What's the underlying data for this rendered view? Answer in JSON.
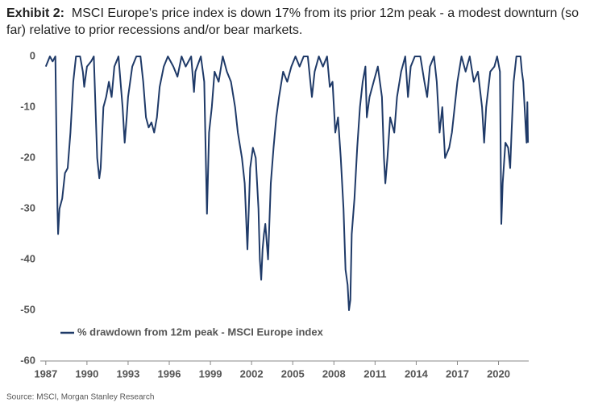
{
  "chart_data": {
    "type": "line",
    "title_prefix": "Exhibit 2:",
    "title": "MSCI Europe's price index is down 17% from its prior 12m peak - a modest downturn (so far) relative to prior recessions and/or bear markets.",
    "source": "Source: MSCI, Morgan Stanley Research",
    "legend": "lower left",
    "xlim": [
      1986.6,
      2022.2
    ],
    "xticks": [
      1987,
      1990,
      1993,
      1996,
      1999,
      2002,
      2005,
      2008,
      2011,
      2014,
      2017,
      2020
    ],
    "ylim": [
      -60,
      0
    ],
    "yticks": [
      0,
      -10,
      -20,
      -30,
      -40,
      -50,
      -60
    ],
    "x": [
      1987.0,
      1987.3,
      1987.5,
      1987.7,
      1987.8,
      1987.85,
      1987.9,
      1988.0,
      1988.2,
      1988.4,
      1988.6,
      1988.8,
      1989.0,
      1989.2,
      1989.5,
      1989.7,
      1989.8,
      1990.0,
      1990.3,
      1990.5,
      1990.65,
      1990.75,
      1990.9,
      1991.0,
      1991.2,
      1991.4,
      1991.6,
      1991.8,
      1992.0,
      1992.3,
      1992.6,
      1992.75,
      1992.9,
      1993.0,
      1993.3,
      1993.6,
      1993.9,
      1994.1,
      1994.3,
      1994.5,
      1994.7,
      1994.9,
      1995.1,
      1995.3,
      1995.6,
      1995.9,
      1996.3,
      1996.6,
      1996.9,
      1997.2,
      1997.6,
      1997.8,
      1997.9,
      1998.3,
      1998.55,
      1998.7,
      1998.75,
      1998.9,
      1999.1,
      1999.3,
      1999.6,
      1999.9,
      2000.2,
      2000.5,
      2000.8,
      2001.0,
      2001.3,
      2001.5,
      2001.7,
      2001.8,
      2001.9,
      2002.1,
      2002.3,
      2002.5,
      2002.6,
      2002.7,
      2002.8,
      2002.9,
      2003.0,
      2003.2,
      2003.4,
      2003.6,
      2003.8,
      2004.0,
      2004.3,
      2004.6,
      2004.9,
      2005.2,
      2005.5,
      2005.8,
      2006.1,
      2006.4,
      2006.6,
      2006.9,
      2007.2,
      2007.5,
      2007.7,
      2007.9,
      2008.1,
      2008.3,
      2008.5,
      2008.7,
      2008.85,
      2009.0,
      2009.1,
      2009.2,
      2009.3,
      2009.5,
      2009.7,
      2009.9,
      2010.1,
      2010.3,
      2010.4,
      2010.6,
      2010.9,
      2011.2,
      2011.5,
      2011.65,
      2011.75,
      2011.9,
      2012.1,
      2012.4,
      2012.6,
      2012.9,
      2013.2,
      2013.4,
      2013.6,
      2013.9,
      2014.3,
      2014.6,
      2014.8,
      2015.0,
      2015.3,
      2015.5,
      2015.7,
      2015.9,
      2016.1,
      2016.4,
      2016.6,
      2016.8,
      2017.0,
      2017.3,
      2017.6,
      2017.9,
      2018.2,
      2018.5,
      2018.8,
      2018.95,
      2019.1,
      2019.4,
      2019.7,
      2019.9,
      2020.1,
      2020.2,
      2020.3,
      2020.5,
      2020.7,
      2020.85,
      2020.95,
      2021.1,
      2021.3,
      2021.6,
      2021.7,
      2021.8,
      2021.9,
      2022.0,
      2022.05,
      2022.1,
      2022.15
    ],
    "series": [
      {
        "name": "% drawdown from 12m peak - MSCI Europe index",
        "color": "#1f3a68",
        "values": [
          -2,
          0,
          -1,
          0,
          -20,
          -30,
          -35,
          -30,
          -28,
          -23,
          -22,
          -15,
          -5,
          0,
          0,
          -3,
          -6,
          -2,
          -1,
          0,
          -12,
          -20,
          -24,
          -22,
          -10,
          -8,
          -5,
          -8,
          -2,
          0,
          -10,
          -17,
          -12,
          -8,
          -2,
          0,
          0,
          -5,
          -12,
          -14,
          -13,
          -15,
          -12,
          -6,
          -2,
          0,
          -2,
          -4,
          0,
          -2,
          0,
          -7,
          -3,
          0,
          -5,
          -25,
          -31,
          -15,
          -10,
          -3,
          -5,
          0,
          -3,
          -5,
          -10,
          -15,
          -20,
          -25,
          -38,
          -30,
          -22,
          -18,
          -20,
          -30,
          -40,
          -44,
          -38,
          -35,
          -33,
          -40,
          -25,
          -18,
          -12,
          -8,
          -3,
          -5,
          -2,
          0,
          -2,
          0,
          0,
          -8,
          -3,
          0,
          -2,
          0,
          -6,
          -5,
          -15,
          -12,
          -20,
          -30,
          -42,
          -45,
          -50,
          -48,
          -35,
          -28,
          -18,
          -10,
          -5,
          -2,
          -12,
          -8,
          -5,
          -2,
          -8,
          -20,
          -25,
          -20,
          -12,
          -15,
          -8,
          -3,
          0,
          -8,
          -2,
          0,
          0,
          -5,
          -8,
          -2,
          0,
          -5,
          -15,
          -10,
          -20,
          -18,
          -15,
          -10,
          -5,
          0,
          -3,
          0,
          -5,
          -3,
          -10,
          -17,
          -10,
          -3,
          -2,
          0,
          -3,
          -33,
          -25,
          -17,
          -18,
          -22,
          -15,
          -5,
          0,
          0,
          -3,
          -5,
          -10,
          -15,
          -17,
          -9,
          -17
        ]
      }
    ]
  }
}
